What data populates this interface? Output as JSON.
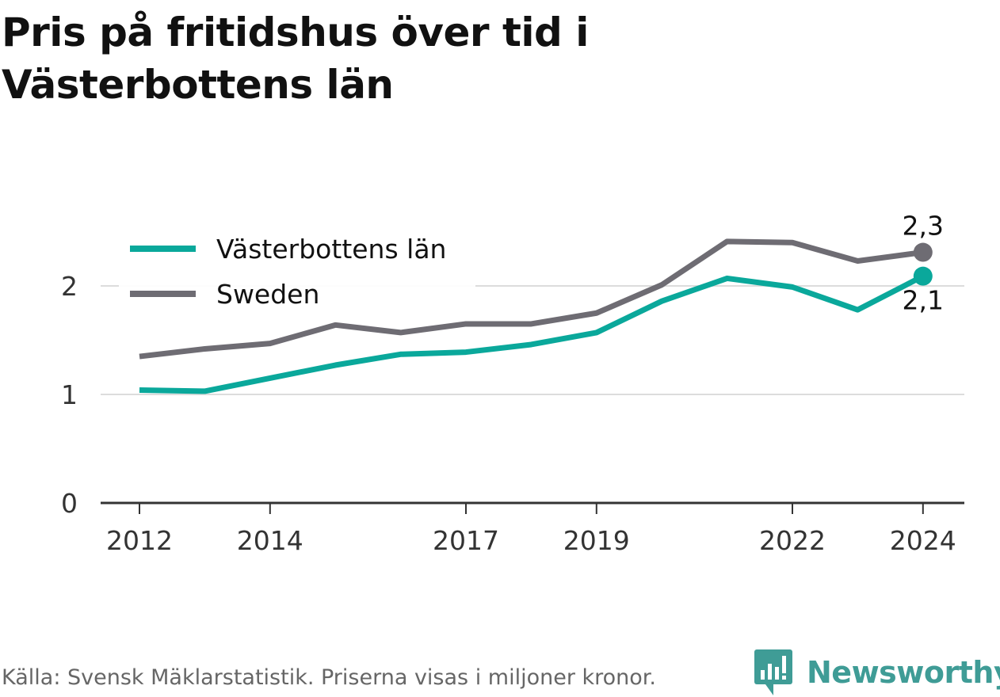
{
  "title": "Pris på fritidshus över tid i Västerbottens län",
  "source": "Källa: Svensk Mäklarstatistik. Priserna visas i miljoner kronor.",
  "brand": "Newsworthy",
  "colors": {
    "vasterbotten": "#0aa89b",
    "sweden": "#6e6c73",
    "grid": "#dcdcdc",
    "axis": "#333333",
    "brand": "#3f9c96"
  },
  "chart_data": {
    "type": "line",
    "x": [
      2012,
      2013,
      2014,
      2015,
      2016,
      2017,
      2018,
      2019,
      2020,
      2021,
      2022,
      2023,
      2024
    ],
    "x_tick_labels": [
      "2012",
      "2014",
      "2017",
      "2019",
      "2022",
      "2024"
    ],
    "y_tick_labels": [
      "0",
      "1",
      "2"
    ],
    "ylim": [
      0,
      2.5
    ],
    "grid": true,
    "legend_position": "top-left",
    "series": [
      {
        "name": "Västerbottens län",
        "color": "#0aa89b",
        "values": [
          1.04,
          1.03,
          1.15,
          1.27,
          1.37,
          1.39,
          1.46,
          1.57,
          1.86,
          2.07,
          1.99,
          1.78,
          2.09
        ],
        "end_label": "2,1"
      },
      {
        "name": "Sweden",
        "color": "#6e6c73",
        "values": [
          1.35,
          1.42,
          1.47,
          1.64,
          1.57,
          1.65,
          1.65,
          1.75,
          2.01,
          2.41,
          2.4,
          2.23,
          2.31
        ],
        "end_label": "2,3"
      }
    ]
  }
}
